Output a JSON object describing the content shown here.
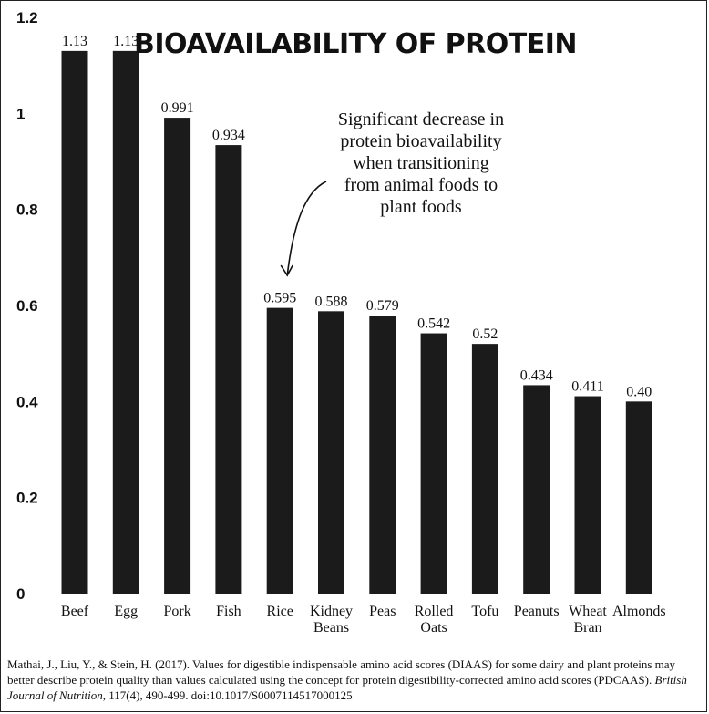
{
  "chart_data": {
    "type": "bar",
    "title": "BIOAVAILABILITY OF PROTEIN",
    "categories": [
      "Beef",
      "Egg",
      "Pork",
      "Fish",
      "Rice",
      "Kidney Beans",
      "Peas",
      "Rolled Oats",
      "Tofu",
      "Peanuts",
      "Wheat Bran",
      "Almonds"
    ],
    "category_lines": [
      [
        "Beef"
      ],
      [
        "Egg"
      ],
      [
        "Pork"
      ],
      [
        "Fish"
      ],
      [
        "Rice"
      ],
      [
        "Kidney",
        "Beans"
      ],
      [
        "Peas"
      ],
      [
        "Rolled",
        "Oats"
      ],
      [
        "Tofu"
      ],
      [
        "Peanuts"
      ],
      [
        "Wheat",
        "Bran"
      ],
      [
        "Almonds"
      ]
    ],
    "values": [
      1.13,
      1.13,
      0.991,
      0.934,
      0.595,
      0.588,
      0.579,
      0.542,
      0.52,
      0.434,
      0.411,
      0.4
    ],
    "value_labels": [
      "1.13",
      "1.13",
      "0.991",
      "0.934",
      "0.595",
      "0.588",
      "0.579",
      "0.542",
      "0.52",
      "0.434",
      "0.411",
      "0.40"
    ],
    "ylim": [
      0,
      1.2
    ],
    "yticks": [
      0,
      0.2,
      0.4,
      0.6,
      0.8,
      1,
      1.2
    ],
    "ytick_labels": [
      "0",
      "0.2",
      "0.4",
      "0.6",
      "0.8",
      "1",
      "1.2"
    ],
    "grid": false,
    "annotation": {
      "lines": [
        "Significant decrease in",
        "protein bioavailability",
        "when transitioning",
        "from animal foods to",
        "plant foods"
      ],
      "points_to": "Rice"
    },
    "bar_color": "#1b1b1b"
  },
  "citation": {
    "text": "Mathai, J., Liu, Y., & Stein, H. (2017). Values for digestible indispensable amino acid scores (DIAAS) for some dairy and plant proteins may better describe protein quality than values calculated using the concept for protein digestibility-corrected amino acid scores (PDCAAS).",
    "journal": "British Journal of Nutrition",
    "rest": ", 117(4), 490-499. doi:10.1017/S0007114517000125"
  }
}
